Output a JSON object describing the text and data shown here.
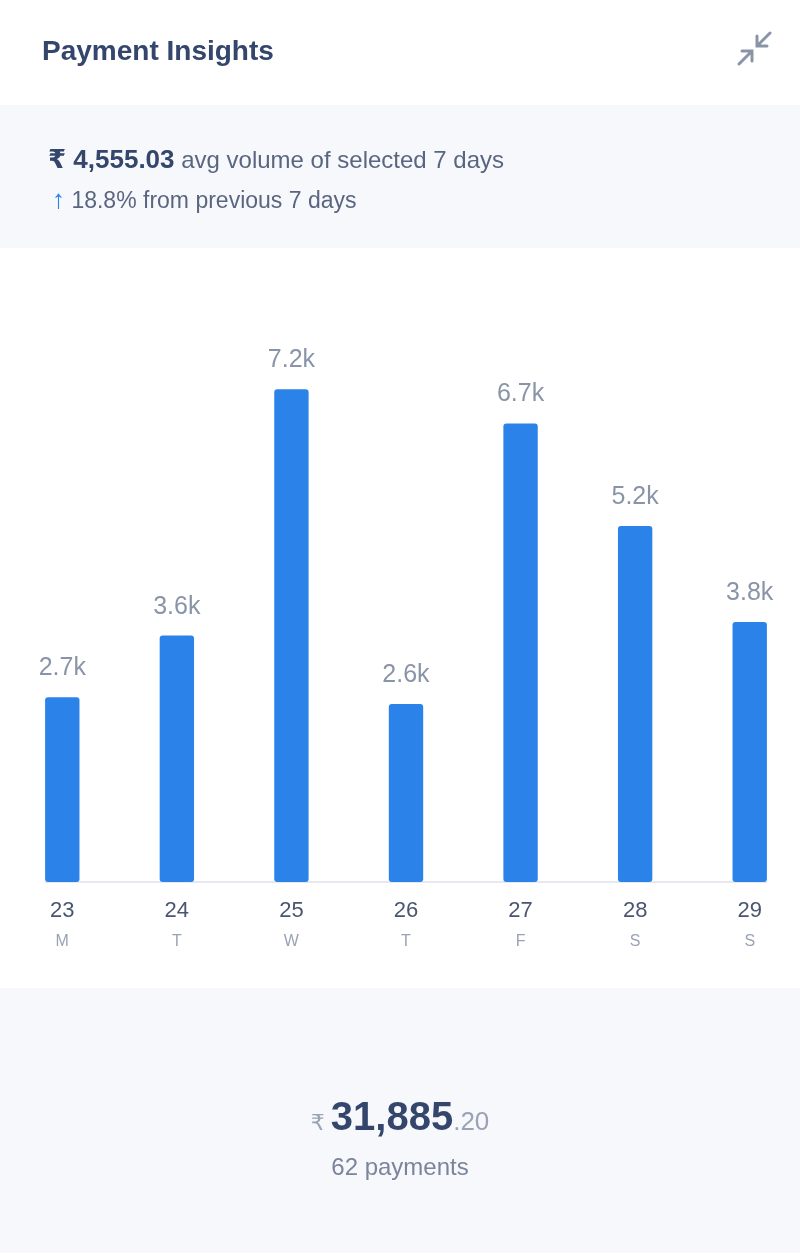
{
  "chart_data": {
    "type": "bar",
    "title": "Payment Insights",
    "subtitle": "₹ 4,555.03 avg volume of selected 7 days",
    "annotations": [
      "↑ 18.8% from previous 7 days",
      "₹31,885.20",
      "62 payments"
    ],
    "categories": [
      "23\nM",
      "24\nT",
      "25\nW",
      "26\nT",
      "27\nF",
      "28\nS",
      "29\nS"
    ],
    "values": [
      2700,
      3600,
      7200,
      2600,
      6700,
      5200,
      3800
    ],
    "value_labels": [
      "2.7k",
      "3.6k",
      "7.2k",
      "2.6k",
      "6.7k",
      "5.2k",
      "3.8k"
    ],
    "color": "#2b83ea"
  }
}
